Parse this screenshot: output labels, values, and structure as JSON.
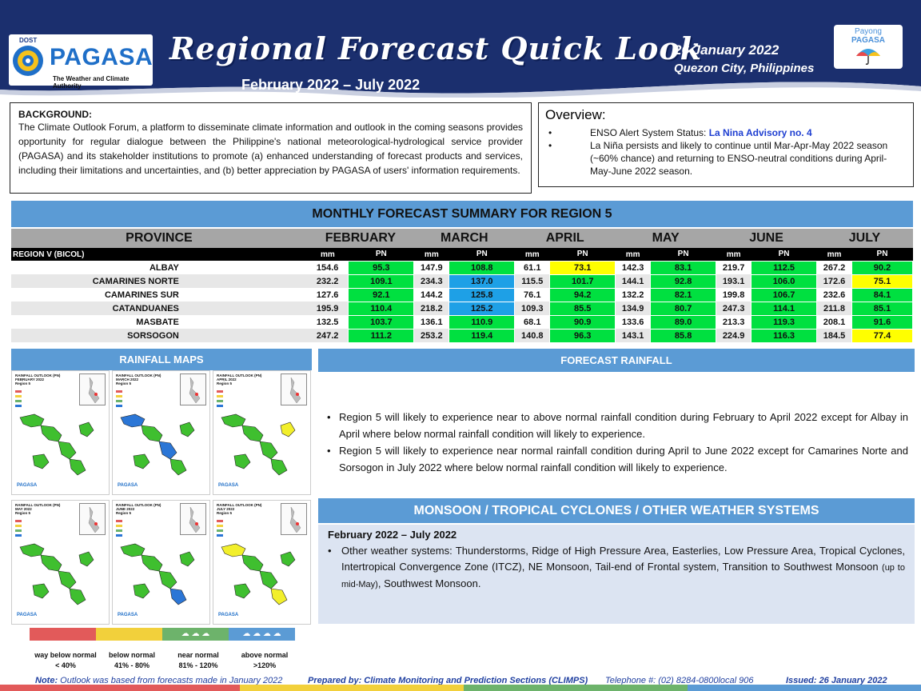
{
  "header": {
    "dost_label": "DOST",
    "brand": "PAGASA",
    "brand_tagline": "The Weather and Climate Authority",
    "title": "Regional Forecast Quick Look",
    "period": "February 2022 – July 2022",
    "date": "26 January 2022",
    "place": "Quezon City, Philippines",
    "payong_line1": "Payong",
    "payong_line2": "PAGASA"
  },
  "background": {
    "title": "BACKGROUND:",
    "text": "The Climate Outlook Forum, a platform to disseminate climate information and outlook in the coming seasons provides opportunity for regular dialogue between the Philippine's national meteorological-hydrological service provider (PAGASA) and its stakeholder institutions to promote (a) enhanced understanding of forecast products and services, including their limitations and uncertainties, and (b) better appreciation by PAGASA of users' information requirements."
  },
  "overview": {
    "title": "Overview:",
    "item1_prefix": "ENSO Alert System Status: ",
    "item1_highlight": "La Nina Advisory no. 4",
    "item2": "La Niña persists and likely to continue until Mar-Apr-May 2022 season (~60% chance) and returning to ENSO-neutral conditions during April-May-June 2022 season."
  },
  "summary": {
    "title": "MONTHLY FORECAST SUMMARY FOR REGION 5",
    "province_header": "PROVINCE",
    "months": [
      "FEBRUARY",
      "MARCH",
      "APRIL",
      "MAY",
      "JUNE",
      "JULY"
    ],
    "region_label": "REGION V (BICOL)",
    "col_mm": "mm",
    "col_pn": "PN",
    "rows": [
      {
        "name": "ALBAY",
        "mm": [
          "154.6",
          "147.9",
          "61.1",
          "142.3",
          "219.7",
          "267.2"
        ],
        "pn": [
          "95.3",
          "108.8",
          "73.1",
          "83.1",
          "112.5",
          "90.2"
        ],
        "cat": [
          "near",
          "near",
          "below",
          "near",
          "near",
          "near"
        ]
      },
      {
        "name": "CAMARINES NORTE",
        "mm": [
          "232.2",
          "234.3",
          "115.5",
          "144.1",
          "193.1",
          "172.6"
        ],
        "pn": [
          "109.1",
          "137.0",
          "101.7",
          "92.8",
          "106.0",
          "75.1"
        ],
        "cat": [
          "near",
          "above",
          "near",
          "near",
          "near",
          "below"
        ]
      },
      {
        "name": "CAMARINES SUR",
        "mm": [
          "127.6",
          "144.2",
          "76.1",
          "132.2",
          "199.8",
          "232.6"
        ],
        "pn": [
          "92.1",
          "125.8",
          "94.2",
          "82.1",
          "106.7",
          "84.1"
        ],
        "cat": [
          "near",
          "above",
          "near",
          "near",
          "near",
          "near"
        ]
      },
      {
        "name": "CATANDUANES",
        "mm": [
          "195.9",
          "218.2",
          "109.3",
          "134.9",
          "247.3",
          "211.8"
        ],
        "pn": [
          "110.4",
          "125.2",
          "85.5",
          "80.7",
          "114.1",
          "85.1"
        ],
        "cat": [
          "near",
          "above",
          "near",
          "near",
          "near",
          "near"
        ]
      },
      {
        "name": "MASBATE",
        "mm": [
          "132.5",
          "136.1",
          "68.1",
          "133.6",
          "213.3",
          "208.1"
        ],
        "pn": [
          "103.7",
          "110.9",
          "90.9",
          "89.0",
          "119.3",
          "91.6"
        ],
        "cat": [
          "near",
          "near",
          "near",
          "near",
          "near",
          "near"
        ]
      },
      {
        "name": "SORSOGON",
        "mm": [
          "247.2",
          "253.2",
          "140.8",
          "143.1",
          "224.9",
          "184.5"
        ],
        "pn": [
          "111.2",
          "119.4",
          "96.3",
          "85.8",
          "116.3",
          "77.4"
        ],
        "cat": [
          "near",
          "near",
          "near",
          "near",
          "near",
          "below"
        ]
      }
    ]
  },
  "colors": {
    "near": "#00e040",
    "above": "#1ea0e6",
    "below": "#ffff00",
    "header_blue": "#1b2f6e",
    "section_blue": "#5b9bd5"
  },
  "maps": {
    "title": "RAINFALL MAPS",
    "cells": [
      {
        "line1": "RAINFALL OUTLOOK (PN)",
        "line2": "FEBRUARY 2022",
        "line3": "Region 5"
      },
      {
        "line1": "RAINFALL OUTLOOK (PN)",
        "line2": "MARCH 2022",
        "line3": "Region 5"
      },
      {
        "line1": "RAINFALL OUTLOOK (PN)",
        "line2": "APRIL 2022",
        "line3": "Region 5"
      },
      {
        "line1": "RAINFALL OUTLOOK (PN)",
        "line2": "MAY 2022",
        "line3": "Region 5"
      },
      {
        "line1": "RAINFALL OUTLOOK (PN)",
        "line2": "JUNE 2022",
        "line3": "Region 5"
      },
      {
        "line1": "RAINFALL OUTLOOK (PN)",
        "line2": "JULY 2022",
        "line3": "Region 5"
      }
    ],
    "legend": [
      {
        "label": "way below normal",
        "range": "< 40%",
        "color": "#e25a5a"
      },
      {
        "label": "below normal",
        "range": "41% - 80%",
        "color": "#f2d03b"
      },
      {
        "label": "near normal",
        "range": "81% - 120%",
        "color": "#6db36b"
      },
      {
        "label": "above normal",
        "range": ">120%",
        "color": "#5b9bd5"
      }
    ]
  },
  "forecast": {
    "title": "FORECAST RAINFALL",
    "items": [
      "Region 5 will likely to experience near to above normal rainfall condition during February to April 2022 except for Albay in April where below normal rainfall condition will likely to experience.",
      "Region 5 will likely to experience near normal rainfall condition during April to June 2022 except for Camarines Norte and Sorsogon in July 2022 where below normal rainfall condition will likely to experience."
    ]
  },
  "monsoon": {
    "title": "MONSOON / TROPICAL CYCLONES / OTHER WEATHER SYSTEMS",
    "period": "February 2022 – July 2022",
    "text_main": "Other weather systems: Thunderstorms,  Ridge of High Pressure Area,  Easterlies, Low Pressure Area, Tropical Cyclones, Intertropical Convergence Zone (ITCZ), NE Monsoon, Tail-end of Frontal system, Transition to Southwest Monsoon ",
    "text_small": "(up to mid-May)",
    "text_end": ", Southwest Monsoon."
  },
  "footer": {
    "note_label": "Note:",
    "note": " Outlook was based from forecasts made in January 2022",
    "prepared": "Prepared by: Climate Monitoring and Prediction Sections (CLIMPS)",
    "telephone": "Telephone #: (02) 8284-0800local 906",
    "issued": "Issued: 26 January 2022"
  }
}
